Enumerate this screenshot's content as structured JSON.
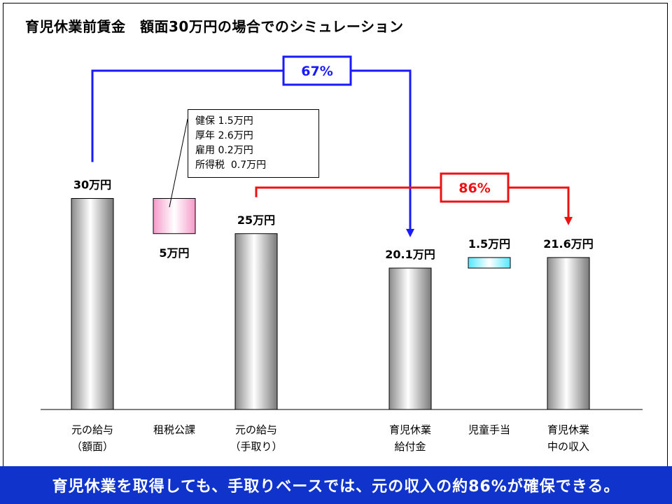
{
  "title": "育児休業前賃金　額面30万円の場合でのシミュレーション",
  "footer": "育児休業を取得しても、手取りベースでは、元の収入の約86%が確保できる。",
  "deductions": [
    "健保 1.5万円",
    "厚年 2.6万円",
    "雇用 0.2万円",
    "所得税  0.7万円"
  ],
  "colors": {
    "blue": "#1a1aff",
    "red": "#ee1111",
    "footer_bg": "#1033cc",
    "pink": "#f59ac8",
    "cyan": "#66eeff"
  },
  "chart_data": {
    "type": "bar",
    "categories": [
      [
        "元の給与",
        "（額面）"
      ],
      [
        "租税公課"
      ],
      [
        "元の給与",
        "（手取り）"
      ],
      [
        "育児休業",
        "給付金"
      ],
      [
        "児童手当"
      ],
      [
        "育児休業",
        "中の収入"
      ]
    ],
    "values": [
      30,
      5,
      25,
      20.1,
      1.5,
      21.6
    ],
    "value_labels": [
      "30万円",
      "5万円",
      "25万円",
      "20.1万円",
      "1.5万円",
      "21.6万円"
    ],
    "styles": [
      "gray",
      "pink",
      "gray",
      "gray",
      "cyan",
      "gray"
    ],
    "floating": [
      false,
      true,
      false,
      false,
      true,
      false
    ],
    "unit": "万円",
    "annotations": [
      {
        "label": "67%",
        "from": "元の給与（額面）",
        "to": "育児休業給付金",
        "color": "blue"
      },
      {
        "label": "86%",
        "from": "元の給与（手取り）",
        "to": "育児休業中の収入",
        "color": "red"
      }
    ]
  }
}
